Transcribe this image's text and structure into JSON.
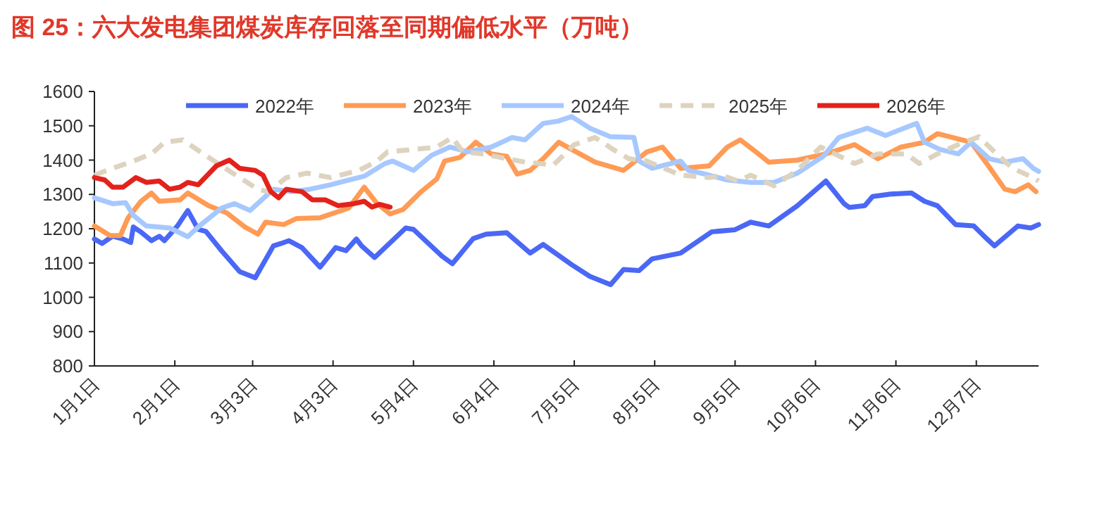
{
  "chart_data": {
    "type": "line",
    "title": "图 25：六大发电集团煤炭库存回落至同期偏低水平（万吨）",
    "xlim": [
      "--01-01",
      "--12-31"
    ],
    "xticks": [
      {
        "value": "--01-01",
        "label": "1月1日"
      },
      {
        "value": "--02-01",
        "label": "2月1日"
      },
      {
        "value": "--03-03",
        "label": "3月3日"
      },
      {
        "value": "--04-03",
        "label": "4月3日"
      },
      {
        "value": "--05-04",
        "label": "5月4日"
      },
      {
        "value": "--06-04",
        "label": "6月4日"
      },
      {
        "value": "--07-05",
        "label": "7月5日"
      },
      {
        "value": "--08-05",
        "label": "8月5日"
      },
      {
        "value": "--09-05",
        "label": "9月5日"
      },
      {
        "value": "--10-06",
        "label": "10月6日"
      },
      {
        "value": "--11-06",
        "label": "11月6日"
      },
      {
        "value": "--12-07",
        "label": "12月7日"
      }
    ],
    "ylim": [
      800,
      1600
    ],
    "yticks": [
      800,
      900,
      1000,
      1100,
      1200,
      1300,
      1400,
      1500,
      1600
    ],
    "grid": false,
    "legend": "top",
    "marker": "none",
    "series": [
      {
        "name": "2022年",
        "color": "#4a68f5",
        "line_style": "solid",
        "x": [
          "--01-01",
          "--01-04",
          "--01-08",
          "--01-12",
          "--01-15",
          "--01-16",
          "--01-19",
          "--01-23",
          "--01-26",
          "--01-28",
          "--02-02",
          "--02-06",
          "--02-10",
          "--02-13",
          "--02-19",
          "--02-26",
          "--03-04",
          "--03-11",
          "--03-14",
          "--03-17",
          "--03-22",
          "--03-29",
          "--04-04",
          "--04-08",
          "--04-12",
          "--04-14",
          "--04-19",
          "--05-01",
          "--05-04",
          "--05-15",
          "--05-19",
          "--05-27",
          "--06-01",
          "--06-09",
          "--06-18",
          "--06-23",
          "--07-04",
          "--07-11",
          "--07-19",
          "--07-24",
          "--07-30",
          "--08-04",
          "--08-15",
          "--08-27",
          "--09-05",
          "--09-11",
          "--09-18",
          "--09-29",
          "--10-10",
          "--10-17",
          "--10-19",
          "--10-25",
          "--10-28",
          "--11-04",
          "--11-12",
          "--11-17",
          "--11-22",
          "--11-29",
          "--12-06",
          "--12-11",
          "--12-14",
          "--12-23",
          "--12-28",
          "--12-31"
        ],
        "values": [
          1170,
          1157,
          1178,
          1170,
          1160,
          1205,
          1190,
          1165,
          1178,
          1165,
          1208,
          1253,
          1198,
          1192,
          1136,
          1075,
          1057,
          1150,
          1157,
          1165,
          1145,
          1088,
          1145,
          1136,
          1170,
          1150,
          1116,
          1202,
          1198,
          1120,
          1098,
          1171,
          1184,
          1188,
          1129,
          1154,
          1095,
          1061,
          1037,
          1081,
          1078,
          1112,
          1129,
          1191,
          1197,
          1219,
          1208,
          1267,
          1339,
          1273,
          1262,
          1267,
          1294,
          1301,
          1304,
          1280,
          1267,
          1212,
          1208,
          1171,
          1150,
          1208,
          1202,
          1212
        ]
      },
      {
        "name": "2023年",
        "color": "#ff9b55",
        "line_style": "solid",
        "x": [
          "--01-01",
          "--01-07",
          "--01-11",
          "--01-14",
          "--01-19",
          "--01-23",
          "--01-26",
          "--02-03",
          "--02-06",
          "--02-14",
          "--02-21",
          "--02-28",
          "--03-05",
          "--03-08",
          "--03-15",
          "--03-20",
          "--03-29",
          "--04-09",
          "--04-15",
          "--04-20",
          "--04-25",
          "--04-30",
          "--05-07",
          "--05-13",
          "--05-16",
          "--05-22",
          "--05-28",
          "--06-03",
          "--06-09",
          "--06-13",
          "--06-18",
          "--06-23",
          "--06-29",
          "--07-04",
          "--07-13",
          "--07-24",
          "--08-02",
          "--08-08",
          "--08-15",
          "--08-26",
          "--09-02",
          "--09-07",
          "--09-13",
          "--09-18",
          "--09-29",
          "--10-10",
          "--10-21",
          "--10-30",
          "--11-08",
          "--11-17",
          "--11-22",
          "--12-05",
          "--12-11",
          "--12-18",
          "--12-22",
          "--12-27",
          "--12-30"
        ],
        "values": [
          1208,
          1180,
          1180,
          1232,
          1280,
          1304,
          1280,
          1284,
          1304,
          1267,
          1246,
          1205,
          1184,
          1219,
          1212,
          1230,
          1232,
          1260,
          1321,
          1273,
          1243,
          1256,
          1308,
          1345,
          1397,
          1408,
          1452,
          1418,
          1411,
          1359,
          1370,
          1404,
          1452,
          1431,
          1394,
          1370,
          1424,
          1438,
          1376,
          1383,
          1438,
          1459,
          1424,
          1394,
          1400,
          1418,
          1445,
          1404,
          1438,
          1452,
          1477,
          1452,
          1390,
          1315,
          1308,
          1328,
          1308
        ]
      },
      {
        "name": "2024年",
        "color": "#a6c8ff",
        "line_style": "solid",
        "x": [
          "--01-01",
          "--01-08",
          "--01-13",
          "--01-16",
          "--01-21",
          "--01-30",
          "--02-06",
          "--02-10",
          "--02-19",
          "--02-24",
          "--03-02",
          "--03-11",
          "--03-18",
          "--03-25",
          "--04-02",
          "--04-09",
          "--04-15",
          "--04-23",
          "--04-26",
          "--05-04",
          "--05-11",
          "--05-18",
          "--05-25",
          "--06-03",
          "--06-11",
          "--06-16",
          "--06-23",
          "--06-29",
          "--07-04",
          "--07-11",
          "--07-19",
          "--07-28",
          "--07-30",
          "--08-04",
          "--08-15",
          "--08-18",
          "--08-24",
          "--09-02",
          "--09-11",
          "--09-20",
          "--09-29",
          "--10-09",
          "--10-15",
          "--10-26",
          "--11-02",
          "--11-14",
          "--11-17",
          "--11-23",
          "--11-30",
          "--12-05",
          "--12-12",
          "--12-18",
          "--12-25",
          "--12-29",
          "--12-31"
        ],
        "values": [
          1290,
          1273,
          1276,
          1239,
          1208,
          1202,
          1177,
          1205,
          1260,
          1273,
          1253,
          1315,
          1308,
          1315,
          1328,
          1342,
          1353,
          1390,
          1397,
          1370,
          1414,
          1438,
          1424,
          1438,
          1466,
          1459,
          1507,
          1514,
          1527,
          1493,
          1468,
          1466,
          1397,
          1376,
          1397,
          1370,
          1360,
          1342,
          1335,
          1335,
          1362,
          1411,
          1466,
          1493,
          1472,
          1507,
          1452,
          1431,
          1418,
          1452,
          1404,
          1394,
          1404,
          1376,
          1367
        ]
      },
      {
        "name": "2025年",
        "color": "#ddd3bf",
        "line_style": "dashed",
        "x": [
          "--01-01",
          "--01-08",
          "--01-16",
          "--01-23",
          "--01-28",
          "--02-04",
          "--02-12",
          "--02-19",
          "--02-26",
          "--03-05",
          "--03-09",
          "--03-16",
          "--03-24",
          "--04-02",
          "--04-13",
          "--04-20",
          "--04-24",
          "--05-04",
          "--05-13",
          "--05-19",
          "--05-23",
          "--05-31",
          "--06-09",
          "--06-16",
          "--06-27",
          "--07-05",
          "--07-13",
          "--07-20",
          "--07-26",
          "--08-02",
          "--08-15",
          "--08-26",
          "--08-31",
          "--09-06",
          "--09-11",
          "--09-20",
          "--09-29",
          "--10-08",
          "--10-21",
          "--10-30",
          "--11-10",
          "--11-15",
          "--11-22",
          "--11-30",
          "--12-08",
          "--12-14",
          "--12-21",
          "--12-29",
          "--12-31"
        ],
        "values": [
          1356,
          1376,
          1397,
          1418,
          1452,
          1459,
          1418,
          1383,
          1349,
          1315,
          1308,
          1349,
          1362,
          1349,
          1370,
          1397,
          1424,
          1431,
          1438,
          1466,
          1424,
          1418,
          1404,
          1394,
          1386,
          1445,
          1466,
          1431,
          1404,
          1397,
          1356,
          1349,
          1356,
          1339,
          1356,
          1325,
          1370,
          1438,
          1390,
          1418,
          1418,
          1390,
          1418,
          1445,
          1468,
          1424,
          1376,
          1349,
          1339
        ]
      },
      {
        "name": "2026年",
        "color": "#e3221c",
        "line_style": "solid",
        "x": [
          "--01-01",
          "--01-05",
          "--01-08",
          "--01-12",
          "--01-17",
          "--01-21",
          "--01-26",
          "--01-30",
          "--02-03",
          "--02-06",
          "--02-10",
          "--02-17",
          "--02-22",
          "--02-26",
          "--03-04",
          "--03-07",
          "--03-10",
          "--03-13",
          "--03-16",
          "--03-22",
          "--03-26",
          "--03-31",
          "--04-05",
          "--04-11",
          "--04-15",
          "--04-18",
          "--04-21",
          "--04-25"
        ],
        "values": [
          1349,
          1342,
          1321,
          1321,
          1349,
          1335,
          1339,
          1315,
          1321,
          1335,
          1328,
          1383,
          1400,
          1376,
          1370,
          1356,
          1308,
          1290,
          1315,
          1308,
          1284,
          1284,
          1267,
          1273,
          1280,
          1263,
          1271,
          1263
        ]
      }
    ]
  }
}
